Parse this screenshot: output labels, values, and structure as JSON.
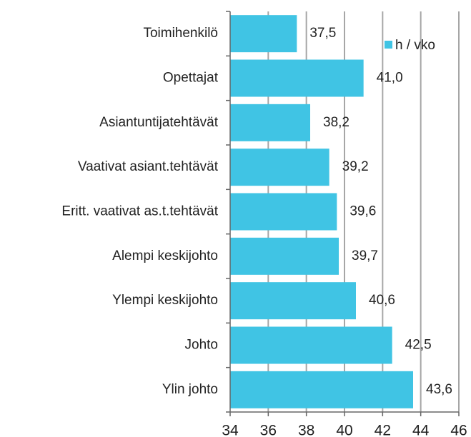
{
  "chart_data": {
    "type": "bar",
    "orientation": "horizontal",
    "categories": [
      "Toimihenkilö",
      "Opettajat",
      "Asiantuntijatehtävät",
      "Vaativat asiant.tehtävät",
      "Eritt. vaativat as.t.tehtävät",
      "Alempi keskijohto",
      "Ylempi keskijohto",
      "Johto",
      "Ylin johto"
    ],
    "series": [
      {
        "name": "h / vko",
        "color": "#40c4e4",
        "values": [
          37.5,
          41.0,
          38.2,
          39.2,
          39.6,
          39.7,
          40.6,
          42.5,
          43.6
        ],
        "value_labels": [
          "37,5",
          "41,0",
          "38,2",
          "39,2",
          "39,6",
          "39,7",
          "40,6",
          "42,5",
          "43,6"
        ]
      }
    ],
    "xlim": [
      34,
      46
    ],
    "xticks": [
      34,
      36,
      38,
      40,
      42,
      44,
      46
    ],
    "grid": true,
    "legend": "top-right"
  }
}
